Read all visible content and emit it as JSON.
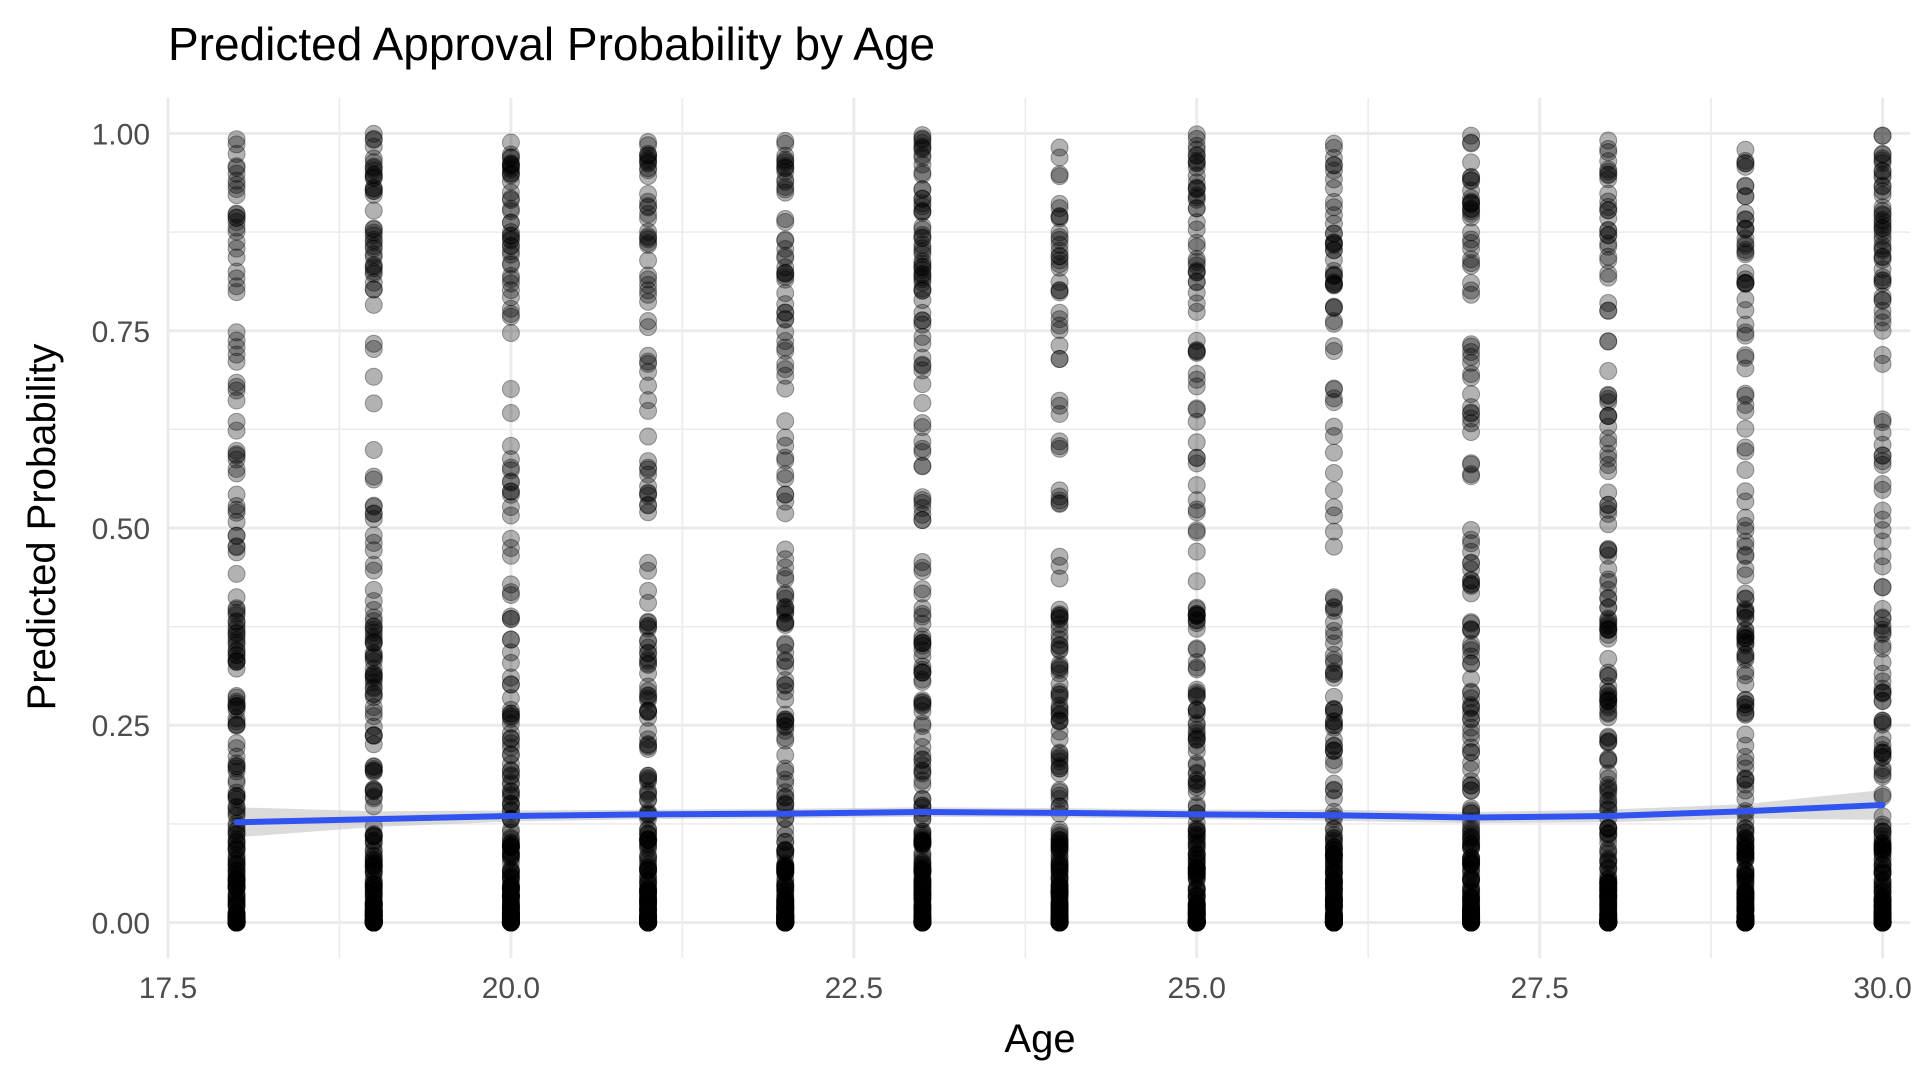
{
  "chart_data": {
    "type": "scatter",
    "title": "Predicted Approval Probability by Age",
    "xlabel": "Age",
    "ylabel": "Predicted Probability",
    "xlim": [
      17.5,
      30.2
    ],
    "ylim": [
      -0.045,
      1.045
    ],
    "x_ticks": [
      "17.5",
      "20.0",
      "22.5",
      "25.0",
      "27.5",
      "30.0"
    ],
    "x_tick_values": [
      17.5,
      20.0,
      22.5,
      25.0,
      27.5,
      30.0
    ],
    "y_ticks": [
      "0.00",
      "0.25",
      "0.50",
      "0.75",
      "1.00"
    ],
    "y_tick_values": [
      0.0,
      0.25,
      0.5,
      0.75,
      1.0
    ],
    "grid": true,
    "legend": "none",
    "colors": {
      "points": "#000000",
      "smooth_line": "#3153F0",
      "confidence_band": "#BEBEBE",
      "grid": "#EBEBEB",
      "axis_text": "#4D4D4D"
    },
    "series": [
      {
        "type": "scatter",
        "ages": [
          18,
          19,
          20,
          21,
          22,
          23,
          24,
          25,
          26,
          27,
          28,
          29,
          30
        ],
        "value_range": [
          0.0,
          1.0
        ]
      },
      {
        "type": "smooth_line",
        "x": [
          18,
          19,
          20,
          21,
          22,
          23,
          24,
          25,
          26,
          27,
          28,
          29,
          30
        ],
        "y": [
          0.127,
          0.131,
          0.135,
          0.137,
          0.138,
          0.14,
          0.139,
          0.137,
          0.136,
          0.133,
          0.135,
          0.141,
          0.149
        ],
        "ci_upper": [
          0.146,
          0.141,
          0.142,
          0.143,
          0.144,
          0.146,
          0.145,
          0.143,
          0.143,
          0.14,
          0.143,
          0.15,
          0.168
        ],
        "ci_lower": [
          0.108,
          0.121,
          0.128,
          0.131,
          0.132,
          0.134,
          0.133,
          0.131,
          0.129,
          0.126,
          0.127,
          0.132,
          0.13
        ]
      }
    ]
  }
}
